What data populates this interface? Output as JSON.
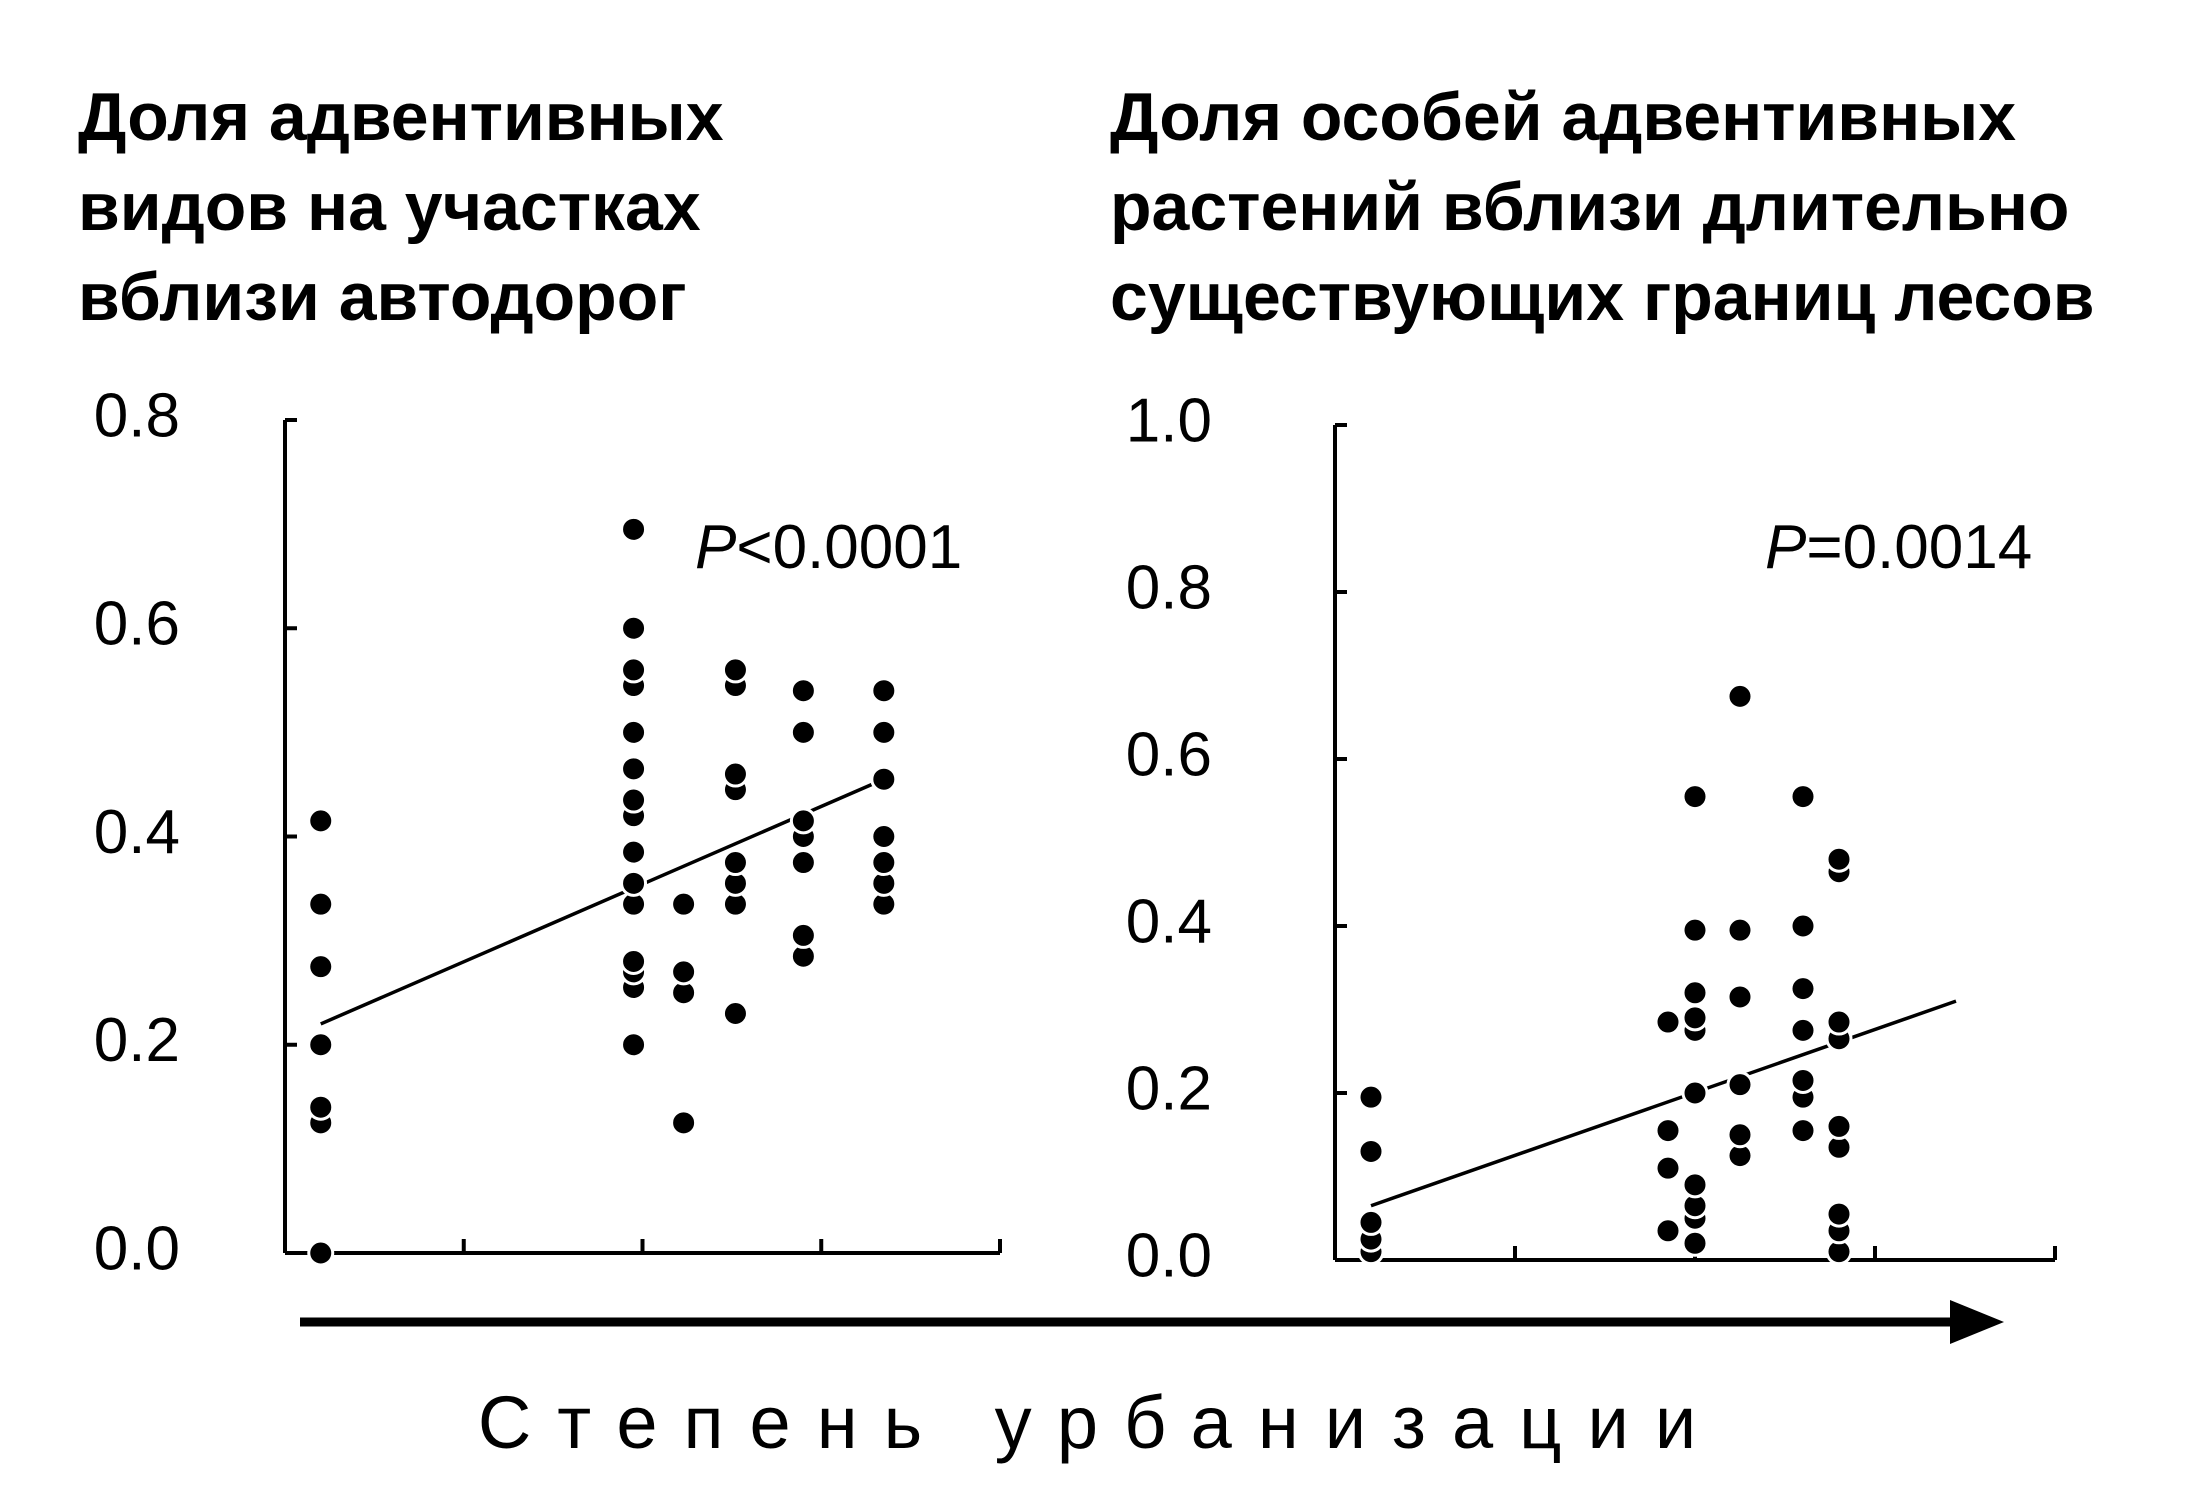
{
  "chart_data": [
    {
      "type": "scatter",
      "title": "Доля адвентивных\nвидов на участках\nвблизи автодорог",
      "annotation_prefix": "P",
      "annotation_text": "<0.0001",
      "ylim": [
        0.0,
        0.8
      ],
      "yticks": [
        "0.0",
        "0.2",
        "0.4",
        "0.6",
        "0.8"
      ],
      "xlim": [
        0,
        4
      ],
      "xticks": [
        0,
        1,
        2,
        3,
        4
      ],
      "trend": [
        [
          0.2,
          0.22
        ],
        [
          3.35,
          0.455
        ]
      ],
      "points": [
        [
          0.2,
          0.0
        ],
        [
          0.2,
          0.125
        ],
        [
          0.2,
          0.14
        ],
        [
          0.2,
          0.2
        ],
        [
          0.2,
          0.275
        ],
        [
          0.2,
          0.335
        ],
        [
          0.2,
          0.415
        ],
        [
          1.95,
          0.2
        ],
        [
          1.95,
          0.255
        ],
        [
          1.95,
          0.27
        ],
        [
          1.95,
          0.28
        ],
        [
          1.95,
          0.335
        ],
        [
          1.95,
          0.355
        ],
        [
          1.95,
          0.385
        ],
        [
          1.95,
          0.42
        ],
        [
          1.95,
          0.435
        ],
        [
          1.95,
          0.465
        ],
        [
          1.95,
          0.5
        ],
        [
          1.95,
          0.545
        ],
        [
          1.95,
          0.56
        ],
        [
          1.95,
          0.6
        ],
        [
          1.95,
          0.695
        ],
        [
          2.23,
          0.125
        ],
        [
          2.23,
          0.25
        ],
        [
          2.23,
          0.27
        ],
        [
          2.23,
          0.335
        ],
        [
          2.52,
          0.23
        ],
        [
          2.52,
          0.335
        ],
        [
          2.52,
          0.355
        ],
        [
          2.52,
          0.375
        ],
        [
          2.52,
          0.445
        ],
        [
          2.52,
          0.46
        ],
        [
          2.52,
          0.545
        ],
        [
          2.52,
          0.56
        ],
        [
          2.9,
          0.285
        ],
        [
          2.9,
          0.305
        ],
        [
          2.9,
          0.375
        ],
        [
          2.9,
          0.4
        ],
        [
          2.9,
          0.415
        ],
        [
          2.9,
          0.5
        ],
        [
          2.9,
          0.54
        ],
        [
          3.35,
          0.335
        ],
        [
          3.35,
          0.355
        ],
        [
          3.35,
          0.375
        ],
        [
          3.35,
          0.4
        ],
        [
          3.35,
          0.455
        ],
        [
          3.35,
          0.5
        ],
        [
          3.35,
          0.54
        ]
      ]
    },
    {
      "type": "scatter",
      "title": "Доля особей адвентивных\nрастений вблизи длительно\nсуществующих границ лесов",
      "annotation_prefix": "P",
      "annotation_text": "=0.0014",
      "ylim": [
        0.0,
        1.0
      ],
      "yticks": [
        "0.0",
        "0.2",
        "0.4",
        "0.6",
        "0.8",
        "1.0"
      ],
      "xlim": [
        0,
        4
      ],
      "xticks": [
        0,
        1,
        2,
        3,
        4
      ],
      "trend": [
        [
          0.2,
          0.065
        ],
        [
          3.45,
          0.31
        ]
      ],
      "points": [
        [
          0.2,
          0.01
        ],
        [
          0.2,
          0.025
        ],
        [
          0.2,
          0.045
        ],
        [
          0.2,
          0.13
        ],
        [
          0.2,
          0.195
        ],
        [
          1.85,
          0.035
        ],
        [
          1.85,
          0.11
        ],
        [
          1.85,
          0.155
        ],
        [
          1.85,
          0.285
        ],
        [
          2.0,
          0.02
        ],
        [
          2.0,
          0.05
        ],
        [
          2.0,
          0.065
        ],
        [
          2.0,
          0.09
        ],
        [
          2.0,
          0.2
        ],
        [
          2.0,
          0.275
        ],
        [
          2.0,
          0.29
        ],
        [
          2.0,
          0.32
        ],
        [
          2.0,
          0.395
        ],
        [
          2.0,
          0.555
        ],
        [
          2.25,
          0.125
        ],
        [
          2.25,
          0.15
        ],
        [
          2.25,
          0.21
        ],
        [
          2.25,
          0.315
        ],
        [
          2.25,
          0.395
        ],
        [
          2.25,
          0.675
        ],
        [
          2.6,
          0.155
        ],
        [
          2.6,
          0.195
        ],
        [
          2.6,
          0.215
        ],
        [
          2.6,
          0.275
        ],
        [
          2.6,
          0.325
        ],
        [
          2.6,
          0.4
        ],
        [
          2.6,
          0.555
        ],
        [
          2.8,
          0.01
        ],
        [
          2.8,
          0.035
        ],
        [
          2.8,
          0.055
        ],
        [
          2.8,
          0.135
        ],
        [
          2.8,
          0.16
        ],
        [
          2.8,
          0.265
        ],
        [
          2.8,
          0.285
        ],
        [
          2.8,
          0.465
        ],
        [
          2.8,
          0.48
        ]
      ]
    }
  ],
  "xlabel": "Степень урбанизации"
}
